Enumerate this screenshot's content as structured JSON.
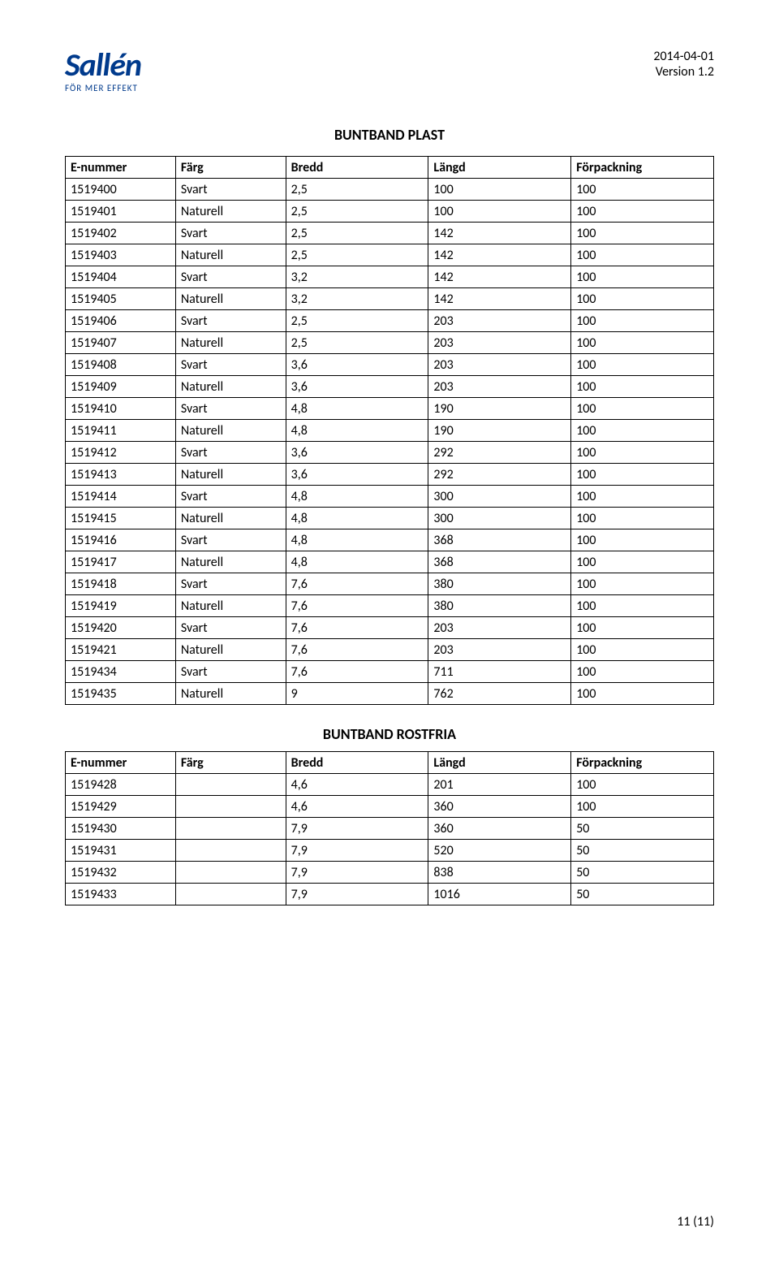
{
  "header": {
    "logo_main": "Sallén",
    "logo_sub": "FÖR MER EFFEKT",
    "date": "2014-04-01",
    "version": "Version 1.2"
  },
  "title1": "BUNTBAND PLAST",
  "table1": {
    "columns": [
      "E-nummer",
      "Färg",
      "Bredd",
      "Längd",
      "Förpackning"
    ],
    "rows": [
      [
        "1519400",
        "Svart",
        "2,5",
        "100",
        "100"
      ],
      [
        "1519401",
        "Naturell",
        "2,5",
        "100",
        "100"
      ],
      [
        "1519402",
        "Svart",
        "2,5",
        "142",
        "100"
      ],
      [
        "1519403",
        "Naturell",
        "2,5",
        "142",
        "100"
      ],
      [
        "1519404",
        "Svart",
        "3,2",
        "142",
        "100"
      ],
      [
        "1519405",
        "Naturell",
        "3,2",
        "142",
        "100"
      ],
      [
        "1519406",
        "Svart",
        "2,5",
        "203",
        "100"
      ],
      [
        "1519407",
        "Naturell",
        "2,5",
        "203",
        "100"
      ],
      [
        "1519408",
        "Svart",
        "3,6",
        "203",
        "100"
      ],
      [
        "1519409",
        "Naturell",
        "3,6",
        "203",
        "100"
      ],
      [
        "1519410",
        "Svart",
        "4,8",
        "190",
        "100"
      ],
      [
        "1519411",
        "Naturell",
        "4,8",
        "190",
        "100"
      ],
      [
        "1519412",
        "Svart",
        "3,6",
        "292",
        "100"
      ],
      [
        "1519413",
        "Naturell",
        "3,6",
        "292",
        "100"
      ],
      [
        "1519414",
        "Svart",
        "4,8",
        "300",
        "100"
      ],
      [
        "1519415",
        "Naturell",
        "4,8",
        "300",
        "100"
      ],
      [
        "1519416",
        "Svart",
        "4,8",
        "368",
        "100"
      ],
      [
        "1519417",
        "Naturell",
        "4,8",
        "368",
        "100"
      ],
      [
        "1519418",
        "Svart",
        "7,6",
        "380",
        "100"
      ],
      [
        "1519419",
        "Naturell",
        "7,6",
        "380",
        "100"
      ],
      [
        "1519420",
        "Svart",
        "7,6",
        "203",
        "100"
      ],
      [
        "1519421",
        "Naturell",
        "7,6",
        "203",
        "100"
      ],
      [
        "1519434",
        "Svart",
        "7,6",
        "711",
        "100"
      ],
      [
        "1519435",
        "Naturell",
        "9",
        "762",
        "100"
      ]
    ]
  },
  "title2": "BUNTBAND ROSTFRIA",
  "table2": {
    "columns": [
      "E-nummer",
      "Färg",
      "Bredd",
      "Längd",
      "Förpackning"
    ],
    "rows": [
      [
        "1519428",
        "",
        "4,6",
        "201",
        "100"
      ],
      [
        "1519429",
        "",
        "4,6",
        "360",
        "100"
      ],
      [
        "1519430",
        "",
        "7,9",
        "360",
        "50"
      ],
      [
        "1519431",
        "",
        "7,9",
        "520",
        "50"
      ],
      [
        "1519432",
        "",
        "7,9",
        "838",
        "50"
      ],
      [
        "1519433",
        "",
        "7,9",
        "1016",
        "50"
      ]
    ]
  },
  "page_number": "11 (11)",
  "colors": {
    "logo": "#003a8c",
    "text": "#000000",
    "background": "#ffffff",
    "border": "#000000"
  }
}
